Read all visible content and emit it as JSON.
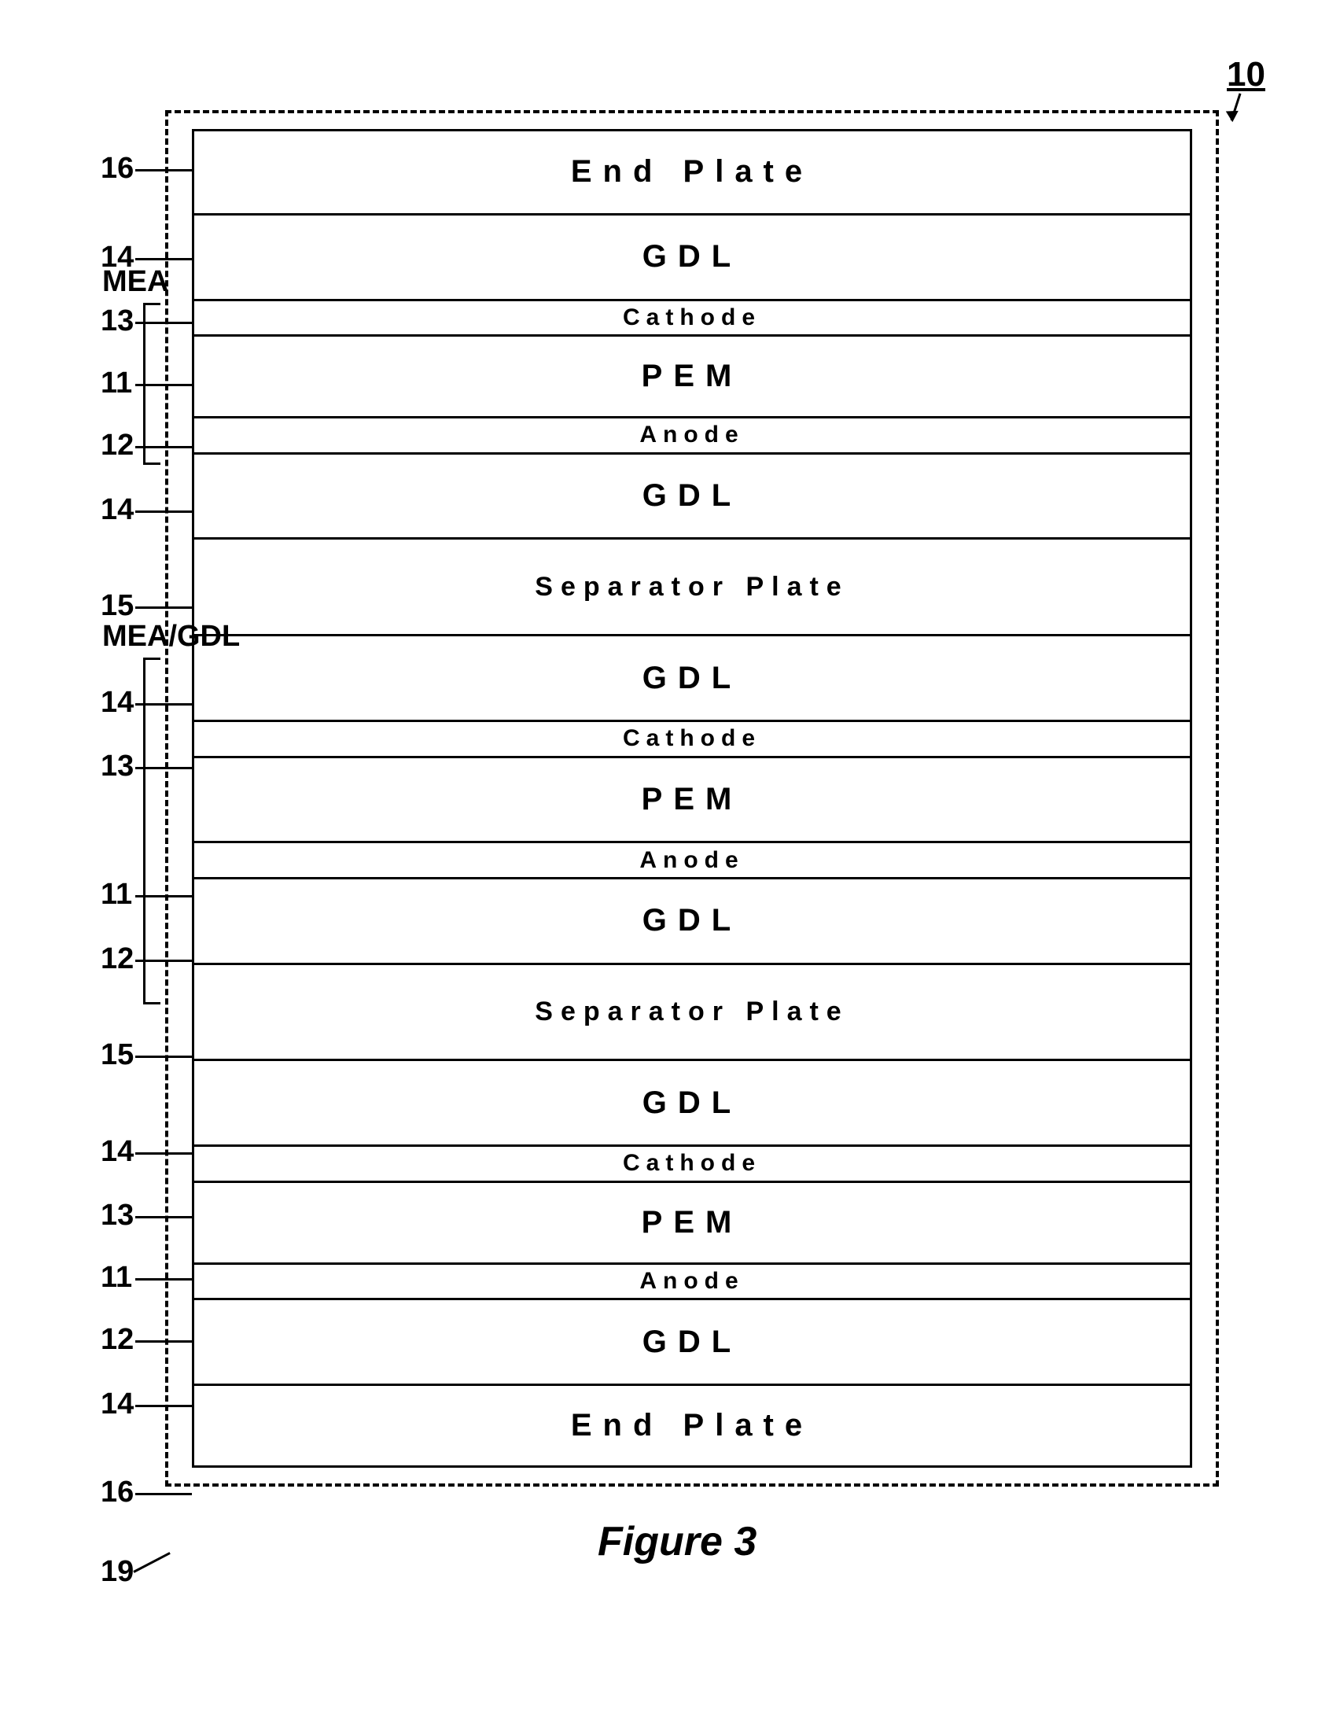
{
  "figure": {
    "caption": "Figure 3",
    "ref_main": "10",
    "ref_outer": "19",
    "bracket_mea": "MEA",
    "bracket_mea_gdl": "MEA/GDL",
    "layers": [
      {
        "label": "End Plate",
        "ref": "16",
        "h": 110,
        "cls": ""
      },
      {
        "label": "GDL",
        "ref": "14",
        "h": 115,
        "cls": ""
      },
      {
        "label": "Cathode",
        "ref": "13",
        "h": 48,
        "cls": "thin"
      },
      {
        "label": "PEM",
        "ref": "11",
        "h": 110,
        "cls": ""
      },
      {
        "label": "Anode",
        "ref": "12",
        "h": 48,
        "cls": "thin"
      },
      {
        "label": "GDL",
        "ref": "14",
        "h": 115,
        "cls": ""
      },
      {
        "label": "Separator Plate",
        "ref": "15",
        "h": 130,
        "cls": "sep"
      },
      {
        "label": "GDL",
        "ref": "14",
        "h": 115,
        "cls": ""
      },
      {
        "label": "Cathode",
        "ref": "13",
        "h": 48,
        "cls": "thin"
      },
      {
        "label": "PEM",
        "ref": "",
        "h": 115,
        "cls": ""
      },
      {
        "label": "Anode",
        "ref": "11",
        "h": 48,
        "cls": "thin"
      },
      {
        "label": "GDL",
        "ref": "12",
        "h": 115,
        "cls": ""
      },
      {
        "label": "Separator Plate",
        "ref": "15",
        "h": 130,
        "cls": "sep"
      },
      {
        "label": "GDL",
        "ref": "14",
        "h": 115,
        "cls": ""
      },
      {
        "label": "Cathode",
        "ref": "13",
        "h": 48,
        "cls": "thin"
      },
      {
        "label": "PEM",
        "ref": "11",
        "h": 110,
        "cls": ""
      },
      {
        "label": "Anode",
        "ref": "12",
        "h": 48,
        "cls": "thin"
      },
      {
        "label": "GDL",
        "ref": "14",
        "h": 115,
        "cls": ""
      },
      {
        "label": "End Plate",
        "ref": "16",
        "h": 110,
        "cls": ""
      }
    ],
    "bracket_mea_range": [
      2,
      4
    ],
    "bracket_mea_gdl_range": [
      7,
      11
    ],
    "extra_ref_14_mid": "14"
  }
}
